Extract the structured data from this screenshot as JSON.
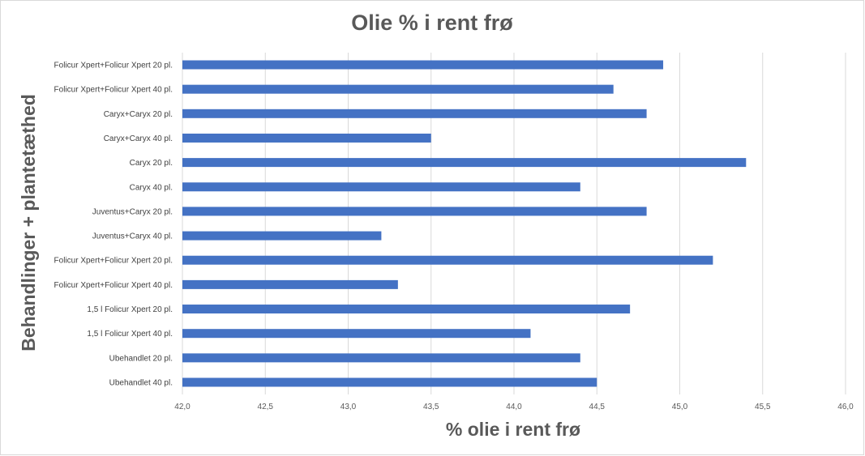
{
  "chart_data": {
    "type": "bar",
    "orientation": "horizontal",
    "title": "Olie % i rent frø",
    "xlabel": "% olie i rent frø",
    "ylabel": "Behandlinger + plantetæthed",
    "xlim": [
      42.0,
      46.0
    ],
    "xticks": [
      42.0,
      42.5,
      43.0,
      43.5,
      44.0,
      44.5,
      45.0,
      45.5,
      46.0
    ],
    "xtick_labels": [
      "42,0",
      "42,5",
      "43,0",
      "43,5",
      "44,0",
      "44,5",
      "45,0",
      "45,5",
      "46,0"
    ],
    "grid": true,
    "legend": false,
    "color": "#4472c4",
    "categories": [
      "Folicur Xpert+Folicur Xpert 20 pl.",
      "Folicur Xpert+Folicur Xpert 40 pl.",
      "Caryx+Caryx 20 pl.",
      "Caryx+Caryx 40 pl.",
      "Caryx 20 pl.",
      "Caryx 40 pl.",
      "Juventus+Caryx 20 pl.",
      "Juventus+Caryx 40 pl.",
      "Folicur Xpert+Folicur Xpert 20 pl.",
      "Folicur Xpert+Folicur Xpert 40 pl.",
      "1,5 l Folicur Xpert 20 pl.",
      "1,5 l Folicur Xpert 40 pl.",
      "Ubehandlet 20 pl.",
      "Ubehandlet 40 pl."
    ],
    "values": [
      44.9,
      44.6,
      44.8,
      43.5,
      45.4,
      44.4,
      44.8,
      43.2,
      45.2,
      43.3,
      44.7,
      44.1,
      44.4,
      44.5
    ]
  }
}
